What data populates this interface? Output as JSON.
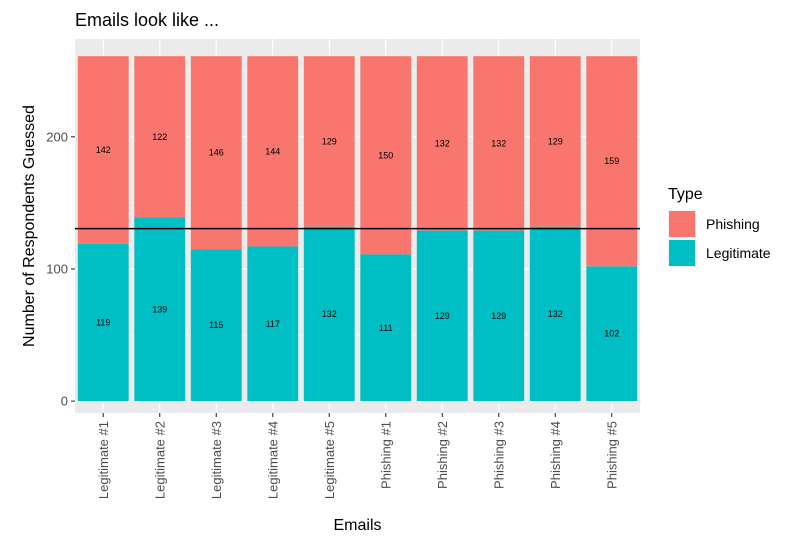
{
  "chart_data": {
    "type": "bar",
    "stacked": true,
    "title": "Emails look like ...",
    "xlabel": "Emails",
    "ylabel": "Number of Respondents Guessed",
    "categories": [
      "Legitimate #1",
      "Legitimate #2",
      "Legitimate #3",
      "Legitimate #4",
      "Legitimate #5",
      "Phishing #1",
      "Phishing #2",
      "Phishing #3",
      "Phishing #4",
      "Phishing #5"
    ],
    "series": [
      {
        "name": "Legitimate",
        "color": "#00BFC4",
        "values": [
          119,
          139,
          115,
          117,
          132,
          111,
          129,
          129,
          132,
          102
        ]
      },
      {
        "name": "Phishing",
        "color": "#F8766D",
        "values": [
          142,
          122,
          146,
          144,
          129,
          150,
          132,
          132,
          129,
          159
        ]
      }
    ],
    "ylim": [
      -9,
      274
    ],
    "yticks": [
      0,
      100,
      200
    ],
    "hline": 130.5,
    "legend": {
      "title": "Type",
      "position": "right",
      "order": [
        "Phishing",
        "Legitimate"
      ]
    },
    "grid": true,
    "panel_background": "#EBEBEB"
  }
}
